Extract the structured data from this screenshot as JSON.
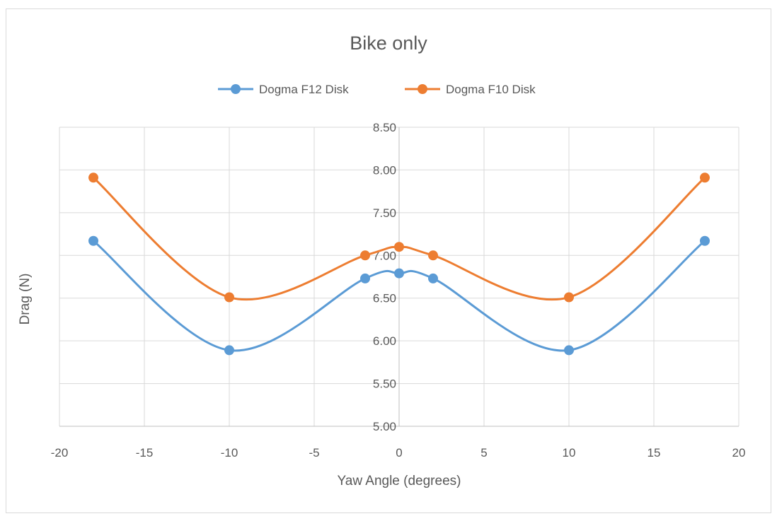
{
  "chart_data": {
    "type": "line",
    "smooth": true,
    "title": "Bike only",
    "xlabel": "Yaw Angle (degrees)",
    "ylabel": "Drag (N)",
    "xlim": [
      -20,
      20
    ],
    "ylim": [
      5.0,
      8.5
    ],
    "xticks": [
      "-20",
      "-15",
      "-10",
      "-5",
      "0",
      "5",
      "10",
      "15",
      "20"
    ],
    "yticks": [
      "5.00",
      "5.50",
      "6.00",
      "6.50",
      "7.00",
      "7.50",
      "8.00",
      "8.50"
    ],
    "grid": true,
    "legend_position": "top",
    "series": [
      {
        "name": "Dogma F12 Disk",
        "color": "#5b9bd5",
        "x": [
          -18,
          -10,
          -2,
          0,
          2,
          10,
          18
        ],
        "y": [
          7.17,
          5.89,
          6.73,
          6.79,
          6.73,
          5.89,
          7.17
        ]
      },
      {
        "name": "Dogma F10 Disk",
        "color": "#ed7d31",
        "x": [
          -18,
          -10,
          -2,
          0,
          2,
          10,
          18
        ],
        "y": [
          7.91,
          6.51,
          7.0,
          7.1,
          7.0,
          6.51,
          7.91
        ]
      }
    ]
  }
}
